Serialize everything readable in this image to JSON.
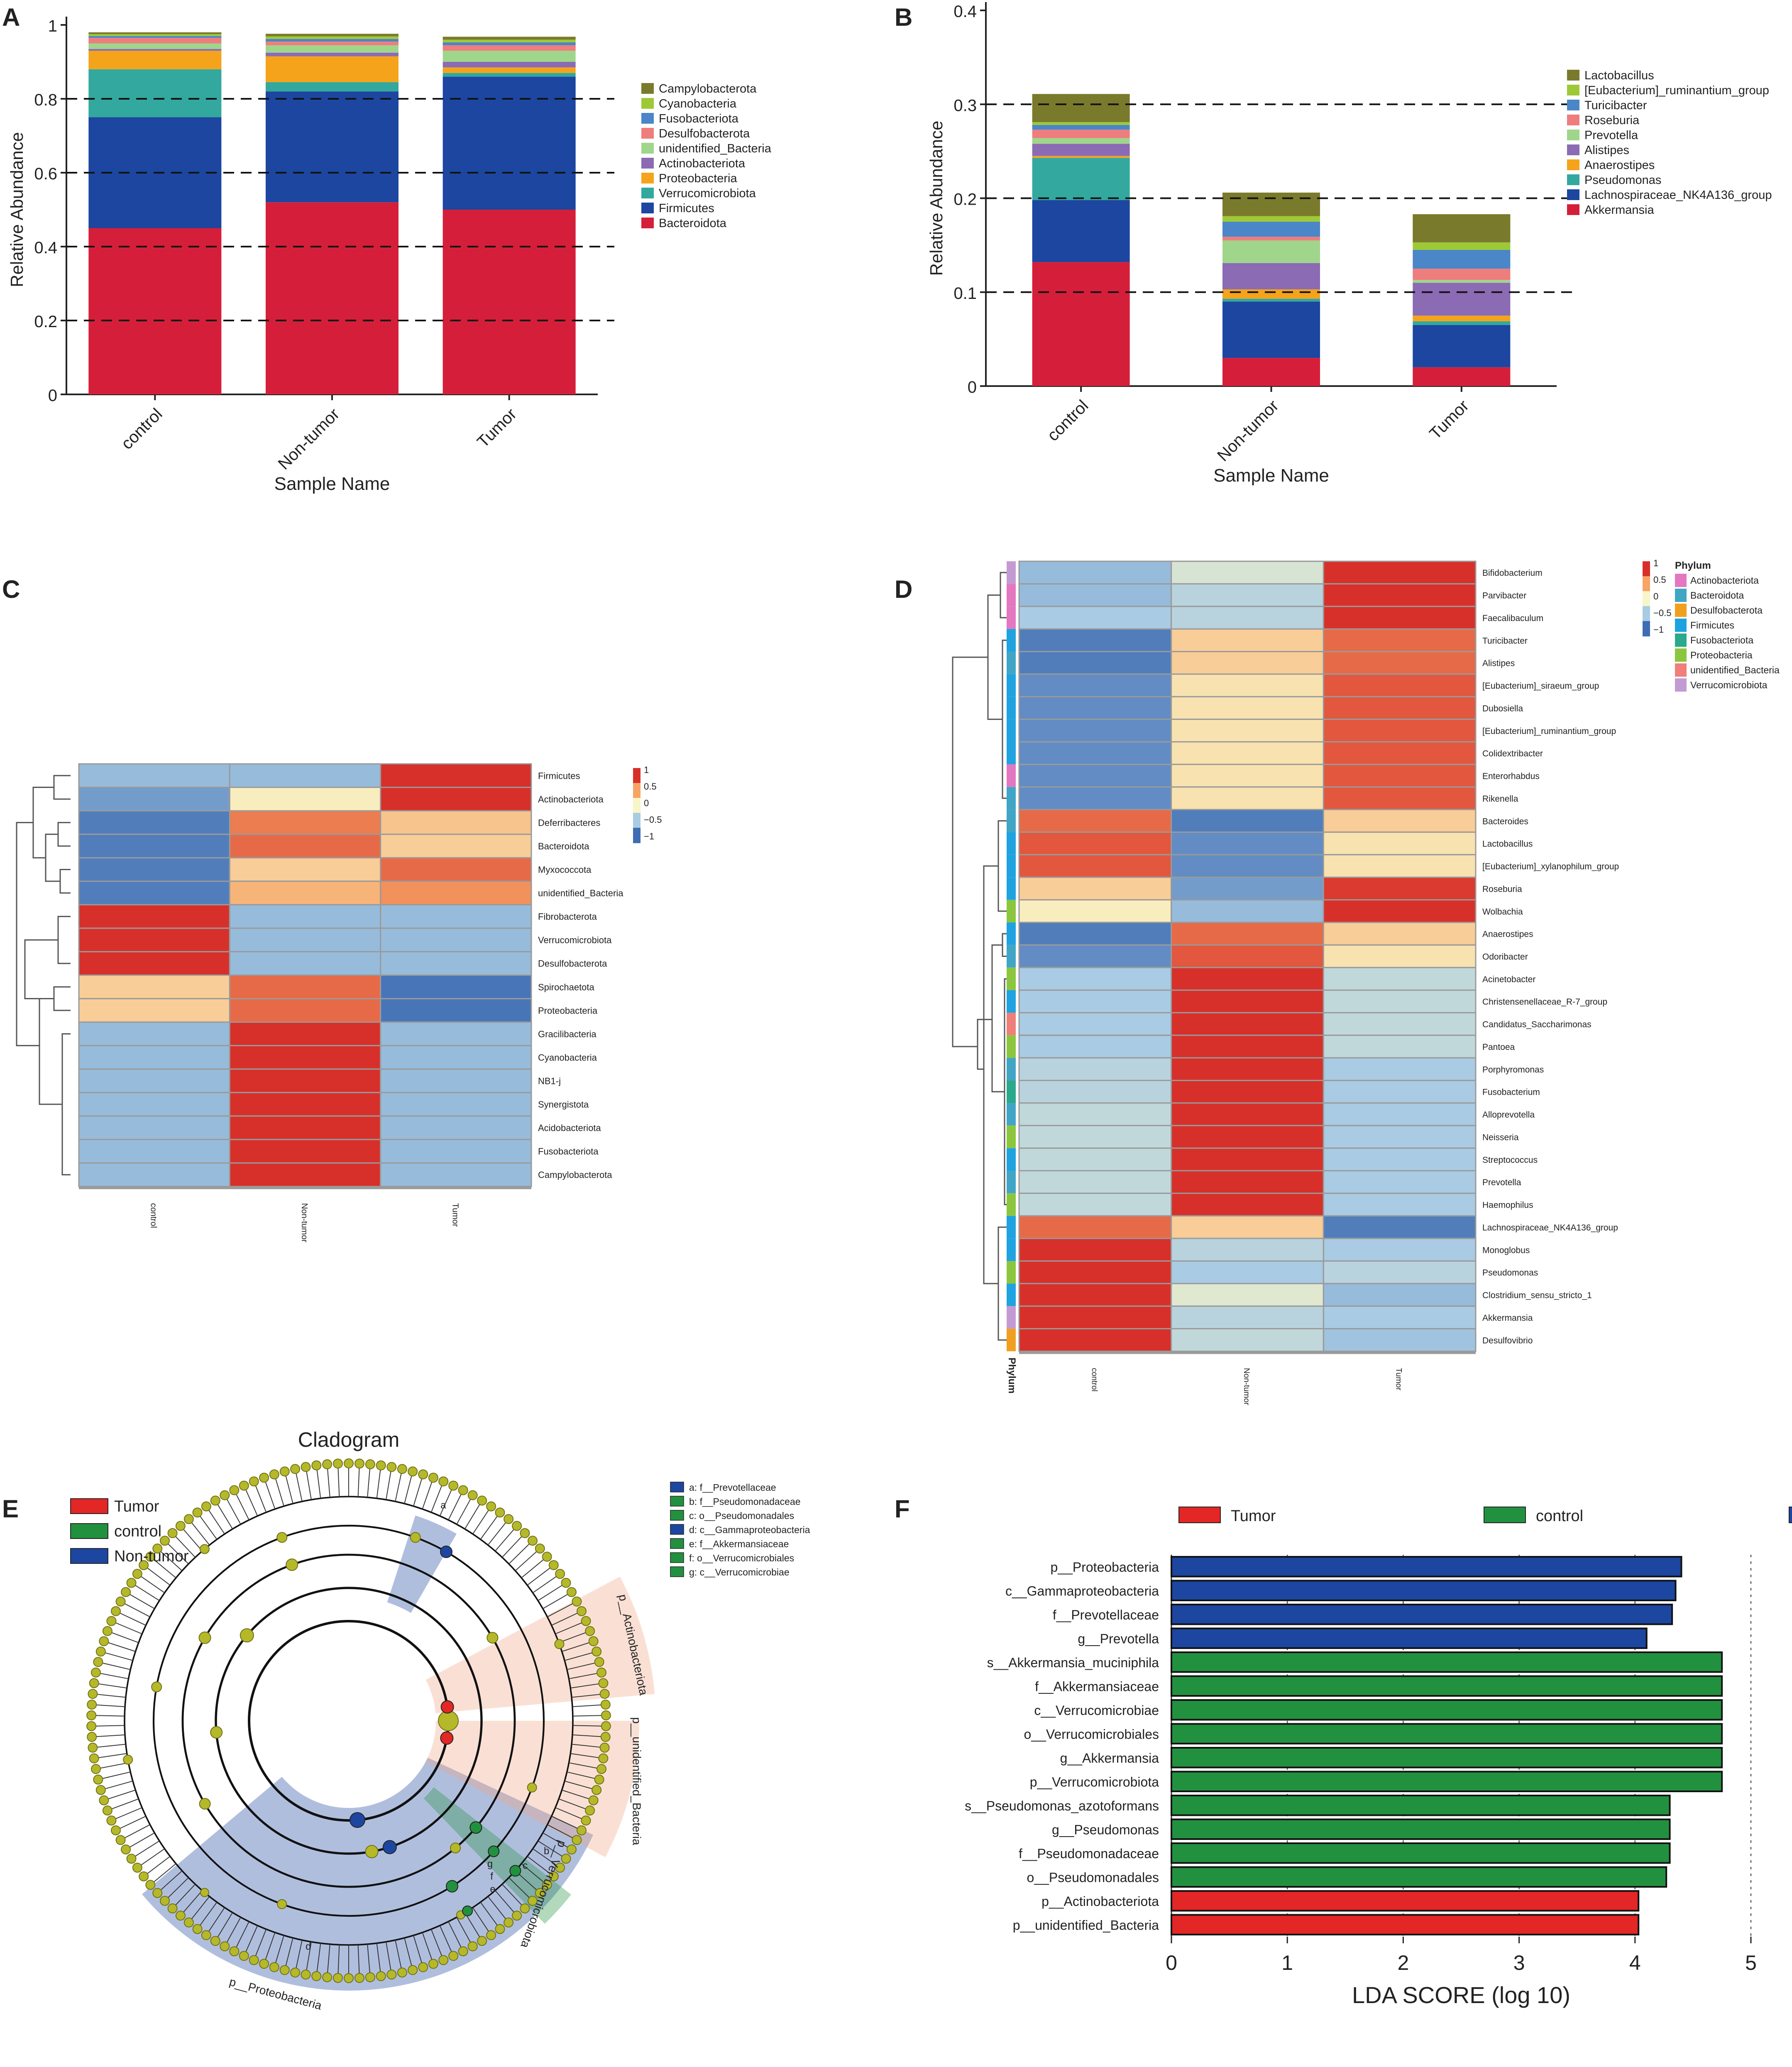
{
  "panels": [
    "A",
    "B",
    "C",
    "D",
    "E",
    "F"
  ],
  "colors": {
    "Bacteroidota": "#d51f3a",
    "Firmicutes": "#1c46a0",
    "Verrucomicrobiota": "#33a89e",
    "Proteobacteria": "#f5a31b",
    "Actinobacteriota": "#8b6bb3",
    "unidentified_Bacteria": "#9fd68b",
    "Desulfobacterota": "#ee7d7d",
    "Fusobacteriota": "#4a86c8",
    "Cyanobacteria": "#9ec936",
    "Campylobacterota": "#7a7a2c",
    "Akkermansia": "#d51f3a",
    "Lachnospiraceae_NK4A136_group": "#1c46a0",
    "Pseudomonas": "#33a89e",
    "Anaerostipes": "#f5a31b",
    "Alistipes": "#8b6bb3",
    "Prevotella": "#9fd68b",
    "Roseburia": "#ee7d7d",
    "Turicibacter": "#4a86c8",
    "[Eubacterium]_ruminantium_group": "#9ec936",
    "Lactobacillus": "#7a7a2c",
    "tumor": "#e32626",
    "control": "#22913f",
    "nontumor": "#1c46a0"
  },
  "chart_data": [
    {
      "panel": "A",
      "type": "bar",
      "stacked": true,
      "categories": [
        "control",
        "Non-tumor",
        "Tumor"
      ],
      "series": [
        {
          "name": "Bacteroidota",
          "values": [
            0.45,
            0.52,
            0.5
          ]
        },
        {
          "name": "Firmicutes",
          "values": [
            0.3,
            0.3,
            0.36
          ]
        },
        {
          "name": "Verrucomicrobiota",
          "values": [
            0.13,
            0.025,
            0.01
          ]
        },
        {
          "name": "Proteobacteria",
          "values": [
            0.05,
            0.07,
            0.015
          ]
        },
        {
          "name": "Actinobacteriota",
          "values": [
            0.005,
            0.01,
            0.015
          ]
        },
        {
          "name": "unidentified_Bacteria",
          "values": [
            0.015,
            0.02,
            0.03
          ]
        },
        {
          "name": "Desulfobacterota",
          "values": [
            0.015,
            0.01,
            0.015
          ]
        },
        {
          "name": "Fusobacteriota",
          "values": [
            0.005,
            0.007,
            0.008
          ]
        },
        {
          "name": "Cyanobacteria",
          "values": [
            0.005,
            0.007,
            0.007
          ]
        },
        {
          "name": "Campylobacterota",
          "values": [
            0.005,
            0.007,
            0.008
          ]
        }
      ],
      "legend": [
        "Campylobacterota",
        "Cyanobacteria",
        "Fusobacteriota",
        "Desulfobacterota",
        "unidentified_Bacteria",
        "Actinobacteriota",
        "Proteobacteria",
        "Verrucomicrobiota",
        "Firmicutes",
        "Bacteroidota"
      ],
      "xlabel": "Sample Name",
      "ylabel": "Relative Abundance",
      "ylim": [
        0,
        1
      ],
      "yticks": [
        "0",
        "0.2",
        "0.4",
        "0.6",
        "0.8",
        "1"
      ],
      "dashed_gridlines": [
        0.2,
        0.4,
        0.6,
        0.8
      ]
    },
    {
      "panel": "B",
      "type": "bar",
      "stacked": true,
      "categories": [
        "control",
        "Non-tumor",
        "Tumor"
      ],
      "series": [
        {
          "name": "Akkermansia",
          "values": [
            0.132,
            0.03,
            0.02
          ]
        },
        {
          "name": "Lachnospiraceae_NK4A136_group",
          "values": [
            0.066,
            0.06,
            0.045
          ]
        },
        {
          "name": "Pseudomonas",
          "values": [
            0.045,
            0.003,
            0.004
          ]
        },
        {
          "name": "Anaerostipes",
          "values": [
            0.002,
            0.01,
            0.006
          ]
        },
        {
          "name": "Alistipes",
          "values": [
            0.013,
            0.028,
            0.035
          ]
        },
        {
          "name": "Prevotella",
          "values": [
            0.006,
            0.024,
            0.003
          ]
        },
        {
          "name": "Roseburia",
          "values": [
            0.009,
            0.004,
            0.012
          ]
        },
        {
          "name": "Turicibacter",
          "values": [
            0.005,
            0.016,
            0.02
          ]
        },
        {
          "name": "[Eubacterium]_ruminantium_group",
          "values": [
            0.003,
            0.006,
            0.008
          ]
        },
        {
          "name": "Lactobacillus",
          "values": [
            0.03,
            0.025,
            0.03
          ]
        }
      ],
      "legend": [
        "Lactobacillus",
        "[Eubacterium]_ruminantium_group",
        "Turicibacter",
        "Roseburia",
        "Prevotella",
        "Alistipes",
        "Anaerostipes",
        "Pseudomonas",
        "Lachnospiraceae_NK4A136_group",
        "Akkermansia"
      ],
      "xlabel": "Sample Name",
      "ylabel": "Relative Abundance",
      "ylim": [
        0,
        0.4
      ],
      "yticks": [
        "0",
        "0.1",
        "0.2",
        "0.3",
        "0.4"
      ],
      "dashed_gridlines": [
        0.1,
        0.2,
        0.3
      ]
    },
    {
      "panel": "C",
      "type": "heatmap",
      "columns": [
        "control",
        "Non-tumor",
        "Tumor"
      ],
      "rows": [
        "Firmicutes",
        "Actinobacteriota",
        "Deferribacteres",
        "Bacteroidota",
        "Myxococcota",
        "unidentified_Bacteria",
        "Fibrobacterota",
        "Verrucomicrobiota",
        "Desulfobacterota",
        "Spirochaetota",
        "Proteobacteria",
        "Gracilibacteria",
        "Cyanobacteria",
        "NB1-j",
        "Synergistota",
        "Acidobacteriota",
        "Fusobacteriota",
        "Campylobacterota"
      ],
      "values": [
        [
          -0.6,
          -0.6,
          1.15
        ],
        [
          -0.8,
          0.05,
          1.15
        ],
        [
          -1.0,
          0.7,
          0.3
        ],
        [
          -1.0,
          0.8,
          0.25
        ],
        [
          -1.0,
          0.25,
          0.8
        ],
        [
          -1.0,
          0.4,
          0.6
        ],
        [
          1.15,
          -0.6,
          -0.6
        ],
        [
          1.15,
          -0.6,
          -0.6
        ],
        [
          1.15,
          -0.6,
          -0.6
        ],
        [
          0.25,
          0.8,
          -1.05
        ],
        [
          0.25,
          0.8,
          -1.05
        ],
        [
          -0.6,
          1.15,
          -0.6
        ],
        [
          -0.6,
          1.15,
          -0.6
        ],
        [
          -0.6,
          1.15,
          -0.6
        ],
        [
          -0.6,
          1.15,
          -0.6
        ],
        [
          -0.6,
          1.15,
          -0.6
        ],
        [
          -0.6,
          1.15,
          -0.6
        ],
        [
          -0.6,
          1.15,
          -0.6
        ]
      ],
      "scale_ticks": [
        "1",
        "0.5",
        "0",
        "−0.5",
        "−1"
      ]
    },
    {
      "panel": "D",
      "type": "heatmap",
      "columns": [
        "control",
        "Non-tumor",
        "Tumor"
      ],
      "rows": [
        "Bifidobacterium",
        "Parvibacter",
        "Faecalibaculum",
        "Turicibacter",
        "Alistipes",
        "[Eubacterium]_siraeum_group",
        "Dubosiella",
        "[Eubacterium]_ruminantium_group",
        "Colidextribacter",
        "Enterorhabdus",
        "Rikenella",
        "Bacteroides",
        "Lactobacillus",
        "[Eubacterium]_xylanophilum_group",
        "Roseburia",
        "Wolbachia",
        "Anaerostipes",
        "Odoribacter",
        "Acinetobacter",
        "Christensenellaceae_R-7_group",
        "Candidatus_Saccharimonas",
        "Pantoea",
        "Porphyromonas",
        "Fusobacterium",
        "Alloprevotella",
        "Neisseria",
        "Streptococcus",
        "Prevotella",
        "Haemophilus",
        "Lachnospiraceae_NK4A136_group",
        "Monoglobus",
        "Pseudomonas",
        "Clostridium_sensu_stricto_1",
        "Akkermansia",
        "Desulfovibrio"
      ],
      "values": [
        [
          -0.6,
          -0.2,
          1.15
        ],
        [
          -0.6,
          -0.4,
          1.15
        ],
        [
          -0.5,
          -0.4,
          1.15
        ],
        [
          -1.0,
          0.25,
          0.8
        ],
        [
          -1.0,
          0.25,
          0.8
        ],
        [
          -0.9,
          0.12,
          0.9
        ],
        [
          -0.9,
          0.12,
          0.9
        ],
        [
          -0.9,
          0.12,
          0.9
        ],
        [
          -0.9,
          0.12,
          0.9
        ],
        [
          -0.9,
          0.12,
          0.9
        ],
        [
          -0.9,
          0.12,
          0.9
        ],
        [
          0.8,
          -1.0,
          0.25
        ],
        [
          0.9,
          -0.9,
          0.12
        ],
        [
          0.9,
          -0.9,
          0.12
        ],
        [
          0.25,
          -0.8,
          1.05
        ],
        [
          0.05,
          -0.6,
          1.15
        ],
        [
          -1.0,
          0.8,
          0.25
        ],
        [
          -0.9,
          0.9,
          0.12
        ],
        [
          -0.5,
          1.15,
          -0.35
        ],
        [
          -0.5,
          1.15,
          -0.35
        ],
        [
          -0.5,
          1.15,
          -0.35
        ],
        [
          -0.5,
          1.15,
          -0.35
        ],
        [
          -0.4,
          1.15,
          -0.5
        ],
        [
          -0.4,
          1.15,
          -0.5
        ],
        [
          -0.35,
          1.15,
          -0.5
        ],
        [
          -0.35,
          1.15,
          -0.5
        ],
        [
          -0.35,
          1.15,
          -0.5
        ],
        [
          -0.35,
          1.15,
          -0.5
        ],
        [
          -0.35,
          1.15,
          -0.5
        ],
        [
          0.8,
          0.25,
          -1.0
        ],
        [
          1.15,
          -0.4,
          -0.5
        ],
        [
          1.15,
          -0.5,
          -0.4
        ],
        [
          1.15,
          -0.15,
          -0.6
        ],
        [
          1.15,
          -0.4,
          -0.5
        ],
        [
          1.15,
          -0.35,
          -0.55
        ]
      ],
      "phylum": [
        "Verrucomicrobiota",
        "Actinobacteriota",
        "Actinobacteriota",
        "Firmicutes",
        "Bacteroidota",
        "Firmicutes",
        "Firmicutes",
        "Firmicutes",
        "Firmicutes",
        "Actinobacteriota",
        "Bacteroidota",
        "Bacteroidota",
        "Firmicutes",
        "Firmicutes",
        "Firmicutes",
        "Proteobacteria",
        "Firmicutes",
        "Bacteroidota",
        "Proteobacteria",
        "Firmicutes",
        "unidentified_Bacteria",
        "Proteobacteria",
        "Bacteroidota",
        "Fusobacteriota",
        "Bacteroidota",
        "Proteobacteria",
        "Firmicutes",
        "Bacteroidota",
        "Proteobacteria",
        "Firmicutes",
        "Firmicutes",
        "Proteobacteria",
        "Firmicutes",
        "Verrucomicrobiota",
        "Desulfobacterota"
      ],
      "phylum_legend_title": "Phylum",
      "phylum_legend": [
        "Actinobacteriota",
        "Bacteroidota",
        "Desulfobacterota",
        "Firmicutes",
        "Fusobacteriota",
        "Proteobacteria",
        "unidentified_Bacteria",
        "Verrucomicrobiota"
      ],
      "phylum_colors": [
        "#e377c2",
        "#41a6c6",
        "#f0a01e",
        "#1fa3e0",
        "#2aa98c",
        "#8cc63e",
        "#ef7f7a",
        "#c39bd3"
      ],
      "scale_ticks": [
        "1",
        "0.5",
        "0",
        "−0.5",
        "−1"
      ],
      "annotation_label": "Phylum"
    },
    {
      "panel": "E",
      "type": "cladogram",
      "title": "Cladogram",
      "group_legend": [
        "Tumor",
        "control",
        "Non-tumor"
      ],
      "key": [
        "a: f__Prevotellaceae",
        "b: f__Pseudomonadaceae",
        "c: o__Pseudomonadales",
        "d: c__Gammaproteobacteria",
        "e: f__Akkermansiaceae",
        "f: o__Verrucomicrobiales",
        "g: c__Verrucomicrobiae"
      ],
      "key_groups": [
        "Non-tumor",
        "control",
        "control",
        "Non-tumor",
        "control",
        "control",
        "control"
      ],
      "sector_labels": [
        "p__Actinobacteriota",
        "p__unidentified_Bacteria",
        "p__Verrucomicrobiota",
        "p__Proteobacteria"
      ],
      "sector_letters": [
        "a",
        "b",
        "c",
        "d",
        "e",
        "f",
        "g"
      ]
    },
    {
      "panel": "F",
      "type": "bar",
      "orientation": "horizontal",
      "legend": [
        "Tumor",
        "control",
        "Non-tumor"
      ],
      "categories": [
        "p__Proteobacteria",
        "c__Gammaproteobacteria",
        "f__Prevotellaceae",
        "g__Prevotella",
        "s__Akkermansia_muciniphila",
        "f__Akkermansiaceae",
        "c__Verrucomicrobiae",
        "o__Verrucomicrobiales",
        "g__Akkermansia",
        "p__Verrucomicrobiota",
        "s__Pseudomonas_azotoformans",
        "g__Pseudomonas",
        "f__Pseudomonadaceae",
        "o__Pseudomonadales",
        "p__Actinobacteriota",
        "p__unidentified_Bacteria"
      ],
      "values": [
        4.4,
        4.35,
        4.32,
        4.1,
        4.75,
        4.75,
        4.75,
        4.75,
        4.75,
        4.75,
        4.3,
        4.3,
        4.3,
        4.27,
        4.03,
        4.03
      ],
      "groups": [
        "Non-tumor",
        "Non-tumor",
        "Non-tumor",
        "Non-tumor",
        "control",
        "control",
        "control",
        "control",
        "control",
        "control",
        "control",
        "control",
        "control",
        "control",
        "Tumor",
        "Tumor"
      ],
      "xlabel": "LDA SCORE (log 10)",
      "xlim": [
        0,
        5
      ],
      "xticks": [
        "0",
        "1",
        "2",
        "3",
        "4",
        "5"
      ]
    }
  ]
}
